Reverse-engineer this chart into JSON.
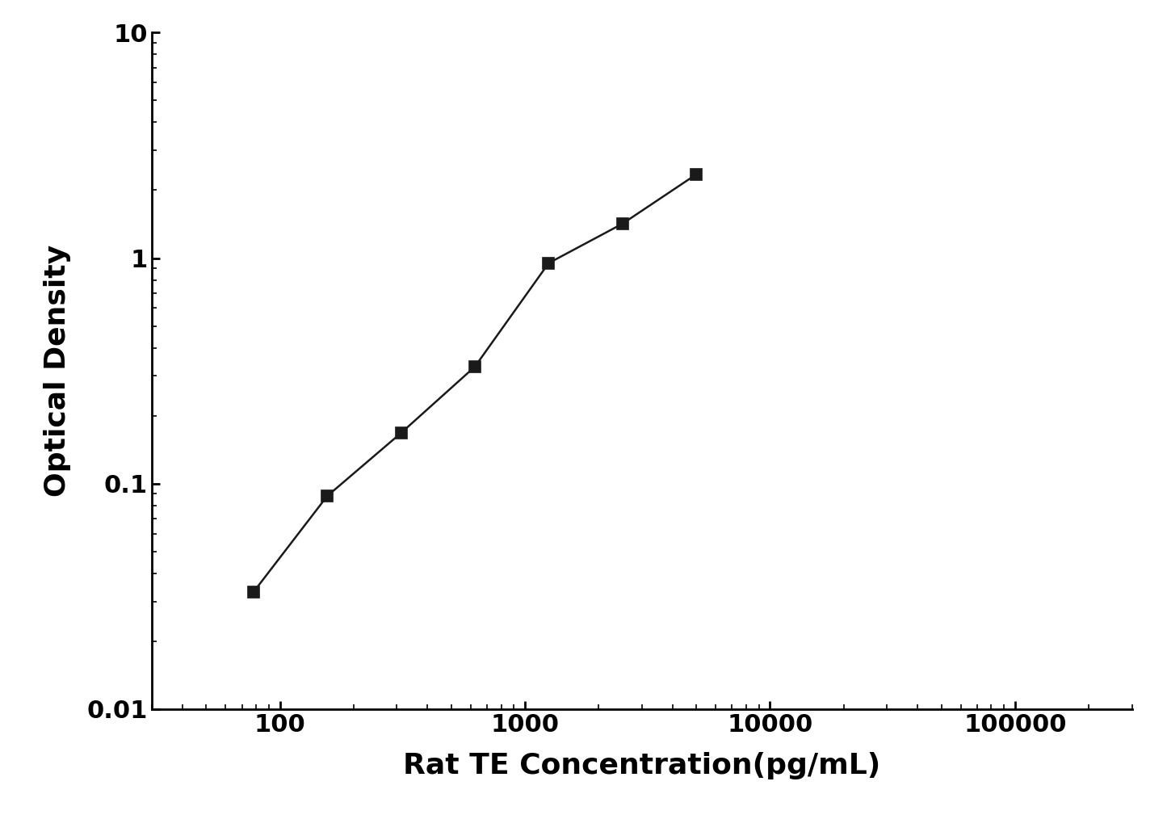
{
  "x": [
    78,
    156,
    313,
    625,
    1250,
    2500,
    5000
  ],
  "y": [
    0.033,
    0.088,
    0.168,
    0.33,
    0.95,
    1.42,
    2.35
  ],
  "xlabel": "Rat TE Concentration(pg/mL)",
  "ylabel": "Optical Density",
  "xlim": [
    30,
    300000
  ],
  "ylim": [
    0.01,
    10
  ],
  "line_color": "#1a1a1a",
  "marker": "s",
  "marker_color": "#1a1a1a",
  "marker_size": 10,
  "linewidth": 1.8,
  "xlabel_fontsize": 26,
  "ylabel_fontsize": 26,
  "tick_fontsize": 22,
  "background_color": "#ffffff",
  "spine_linewidth": 2.0,
  "xticks": [
    100,
    1000,
    10000,
    100000
  ],
  "xticklabels": [
    "100",
    "1000",
    "10000",
    "100000"
  ],
  "yticks": [
    0.01,
    0.1,
    1,
    10
  ],
  "yticklabels": [
    "0.01",
    "0.1",
    "1",
    "10"
  ]
}
